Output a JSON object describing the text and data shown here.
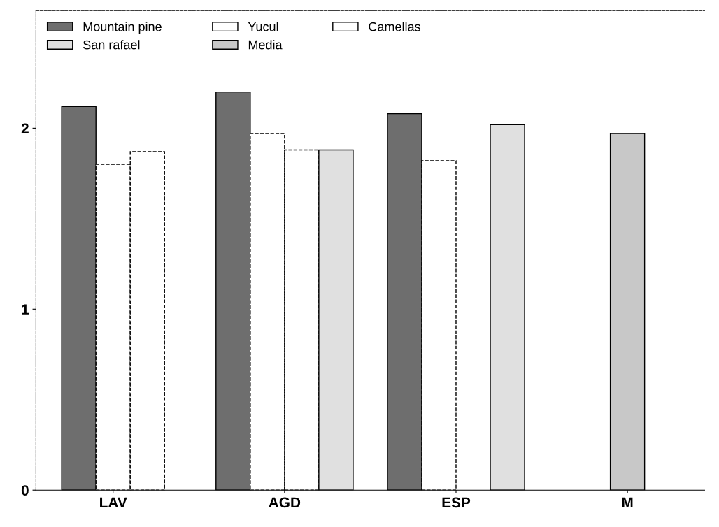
{
  "chart_data": {
    "type": "bar",
    "categories": [
      "LAV",
      "AGD",
      "ESP",
      "M"
    ],
    "series": [
      {
        "name": "Mountain pine",
        "color": "#6e6e6e",
        "values": [
          2.12,
          2.2,
          2.08,
          null
        ]
      },
      {
        "name": "Yucul",
        "color": "#ffffff",
        "values": [
          1.8,
          1.97,
          1.82,
          null
        ]
      },
      {
        "name": "Camellas",
        "color": "#ffffff",
        "values": [
          1.87,
          1.88,
          null,
          null
        ]
      },
      {
        "name": "San rafael",
        "color": "#e0e0e0",
        "values": [
          null,
          1.88,
          2.02,
          null
        ]
      },
      {
        "name": "Media",
        "color": "#c8c8c8",
        "values": [
          null,
          null,
          null,
          1.97
        ]
      }
    ],
    "ylim": [
      0,
      2.65
    ],
    "yticks": [
      0,
      1,
      2
    ],
    "grid": false,
    "legend": "top left"
  }
}
